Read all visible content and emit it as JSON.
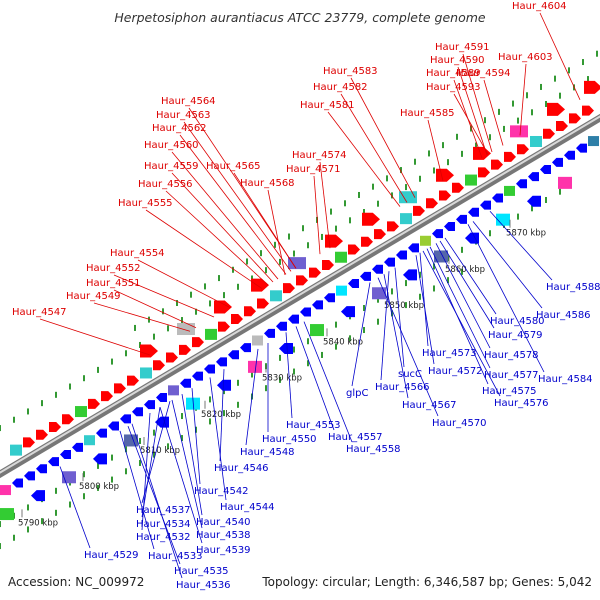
{
  "title": "Herpetosiphon aurantiacus ATCC 23779, complete genome",
  "accession": "Accession: NC_009972",
  "summary": "Topology: circular; Length: 6,346,587 bp; Genes: 5,042",
  "colors": {
    "upper_label": "#dd0000",
    "lower_label": "#0000cc",
    "forward_gene": "#ff0000",
    "reverse_gene": "#0000ff",
    "backbone": "#999999",
    "dots": "#339933"
  },
  "ticks": [
    "5790 kbp",
    "5800 kbp",
    "5810 kbp",
    "5820 kbp",
    "5830 kbp",
    "5840 kbp",
    "5850 kbp",
    "5860 kbp",
    "5870 kbp"
  ],
  "upper_labels": [
    "Haur_4604",
    "Haur_4591",
    "Haur_4590",
    "Haur_4589",
    "Haur_4594",
    "Haur_4603",
    "Haur_4583",
    "Haur_4582",
    "Haur_4593",
    "Haur_4581",
    "Haur_4585",
    "Haur_4564",
    "Haur_4563",
    "Haur_4562",
    "Haur_4560",
    "Haur_4574",
    "Haur_4559",
    "Haur_4565",
    "Haur_4571",
    "Haur_4556",
    "Haur_4568",
    "Haur_4555",
    "Haur_4554",
    "Haur_4552",
    "Haur_4551",
    "Haur_4549",
    "Haur_4547"
  ],
  "lower_labels": [
    "Haur_4588",
    "Haur_4586",
    "Haur_4580",
    "Haur_4579",
    "Haur_4578",
    "Haur_4584",
    "Haur_4573",
    "Haur_4572",
    "Haur_4577",
    "Haur_4575",
    "Haur_4576",
    "sucC",
    "Haur_4566",
    "Haur_4567",
    "glpC",
    "Haur_4570",
    "Haur_4553",
    "Haur_4557",
    "Haur_4558",
    "Haur_4550",
    "Haur_4548",
    "Haur_4546",
    "Haur_4542",
    "Haur_4544",
    "Haur_4537",
    "Haur_4540",
    "Haur_4534",
    "Haur_4538",
    "Haur_4532",
    "Haur_4539",
    "Haur_4529",
    "Haur_4533",
    "Haur_4535",
    "Haur_4536"
  ]
}
